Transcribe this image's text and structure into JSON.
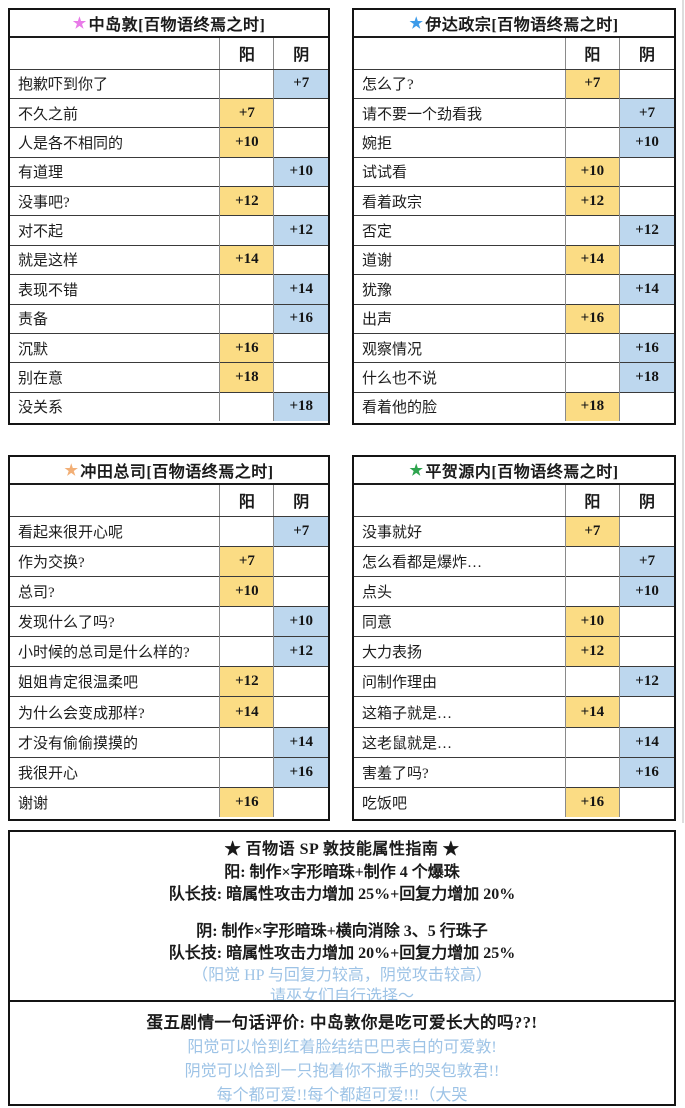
{
  "star_glyph": "★",
  "columns": {
    "yang": "阳",
    "yin": "阴"
  },
  "colors": {
    "yang_fill": "#FBDC84",
    "yin_fill": "#BDD7EE",
    "note_blue": "#9DC3E6",
    "star_pink": "#E87BE8",
    "star_blue": "#3D9BE9",
    "star_orange": "#F2AF76",
    "star_green": "#2EA44E"
  },
  "tables": [
    {
      "title": "中岛敦[百物语终焉之时]",
      "star_color": "#E87BE8",
      "rows": [
        {
          "label": "抱歉吓到你了",
          "yang": "",
          "yin": "+7"
        },
        {
          "label": "不久之前",
          "yang": "+7",
          "yin": ""
        },
        {
          "label": "人是各不相同的",
          "yang": "+10",
          "yin": ""
        },
        {
          "label": "有道理",
          "yang": "",
          "yin": "+10"
        },
        {
          "label": "没事吧?",
          "yang": "+12",
          "yin": ""
        },
        {
          "label": "对不起",
          "yang": "",
          "yin": "+12"
        },
        {
          "label": "就是这样",
          "yang": "+14",
          "yin": ""
        },
        {
          "label": "表现不错",
          "yang": "",
          "yin": "+14"
        },
        {
          "label": "责备",
          "yang": "",
          "yin": "+16"
        },
        {
          "label": "沉默",
          "yang": "+16",
          "yin": ""
        },
        {
          "label": "别在意",
          "yang": "+18",
          "yin": ""
        },
        {
          "label": "没关系",
          "yang": "",
          "yin": "+18"
        }
      ]
    },
    {
      "title": "伊达政宗[百物语终焉之时]",
      "star_color": "#3D9BE9",
      "rows": [
        {
          "label": "怎么了?",
          "yang": "+7",
          "yin": ""
        },
        {
          "label": "请不要一个劲看我",
          "yang": "",
          "yin": "+7"
        },
        {
          "label": "婉拒",
          "yang": "",
          "yin": "+10"
        },
        {
          "label": "试试看",
          "yang": "+10",
          "yin": ""
        },
        {
          "label": "看着政宗",
          "yang": "+12",
          "yin": ""
        },
        {
          "label": "否定",
          "yang": "",
          "yin": "+12"
        },
        {
          "label": "道谢",
          "yang": "+14",
          "yin": ""
        },
        {
          "label": "犹豫",
          "yang": "",
          "yin": "+14"
        },
        {
          "label": "出声",
          "yang": "+16",
          "yin": ""
        },
        {
          "label": "观察情况",
          "yang": "",
          "yin": "+16"
        },
        {
          "label": "什么也不说",
          "yang": "",
          "yin": "+18"
        },
        {
          "label": "看着他的脸",
          "yang": "+18",
          "yin": ""
        }
      ]
    },
    {
      "title": "冲田总司[百物语终焉之时]",
      "star_color": "#F2AF76",
      "rows": [
        {
          "label": "看起来很开心呢",
          "yang": "",
          "yin": "+7"
        },
        {
          "label": "作为交换?",
          "yang": "+7",
          "yin": ""
        },
        {
          "label": "总司?",
          "yang": "+10",
          "yin": ""
        },
        {
          "label": "发现什么了吗?",
          "yang": "",
          "yin": "+10"
        },
        {
          "label": "小时候的总司是什么样的?",
          "yang": "",
          "yin": "+12"
        },
        {
          "label": "姐姐肯定很温柔吧",
          "yang": "+12",
          "yin": ""
        },
        {
          "label": "为什么会变成那样?",
          "yang": "+14",
          "yin": ""
        },
        {
          "label": "才没有偷偷摸摸的",
          "yang": "",
          "yin": "+14"
        },
        {
          "label": "我很开心",
          "yang": "",
          "yin": "+16"
        },
        {
          "label": "谢谢",
          "yang": "+16",
          "yin": ""
        }
      ]
    },
    {
      "title": "平贺源内[百物语终焉之时]",
      "star_color": "#2EA44E",
      "rows": [
        {
          "label": "没事就好",
          "yang": "+7",
          "yin": ""
        },
        {
          "label": "怎么看都是爆炸…",
          "yang": "",
          "yin": "+7"
        },
        {
          "label": "点头",
          "yang": "",
          "yin": "+10"
        },
        {
          "label": "同意",
          "yang": "+10",
          "yin": ""
        },
        {
          "label": "大力表扬",
          "yang": "+12",
          "yin": ""
        },
        {
          "label": "问制作理由",
          "yang": "",
          "yin": "+12"
        },
        {
          "label": "这箱子就是…",
          "yang": "+14",
          "yin": ""
        },
        {
          "label": "这老鼠就是…",
          "yang": "",
          "yin": "+14"
        },
        {
          "label": "害羞了吗?",
          "yang": "",
          "yin": "+16"
        },
        {
          "label": "吃饭吧",
          "yang": "+16",
          "yin": ""
        }
      ]
    }
  ],
  "guide_box": {
    "title": "★ 百物语 SP 敦技能属性指南 ★",
    "yang_skill": "阳: 制作×字形暗珠+制作 4 个爆珠",
    "yang_leader": "队长技: 暗属性攻击力增加 25%+回复力增加 20%",
    "yin_skill": "阴: 制作×字形暗珠+横向消除 3、5 行珠子",
    "yin_leader": "队长技: 暗属性攻击力增加 20%+回复力增加 25%",
    "note1": "（阳觉 HP 与回复力较高，阴觉攻击较高）",
    "note2": "请巫女们自行选择～"
  },
  "comment_box": {
    "title": "蛋五剧情一句话评价: 中岛敦你是吃可爱长大的吗??!",
    "line1": "阳觉可以恰到红着脸结结巴巴表白的可爱敦!",
    "line2": "阴觉可以恰到一只抱着你不撒手的哭包敦君!!",
    "line3": "每个都可爱!!每个都超可爱!!!（大哭"
  }
}
